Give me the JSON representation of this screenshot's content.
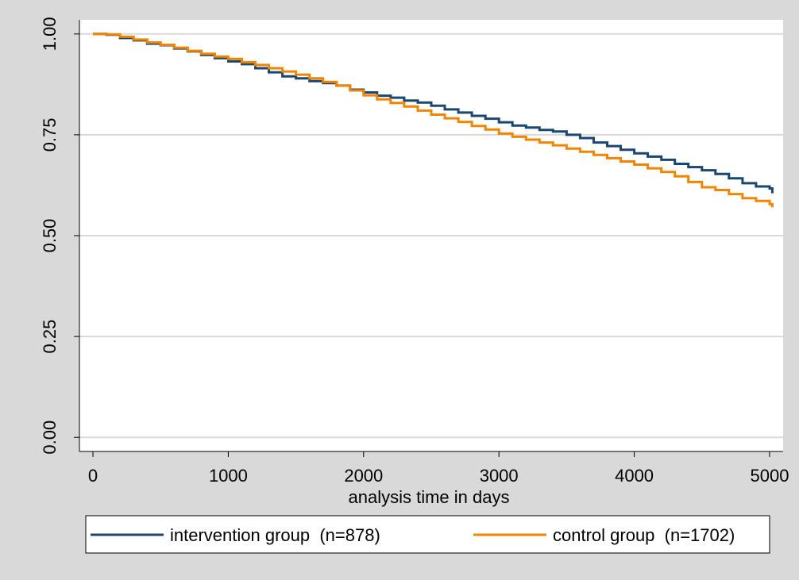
{
  "chart_data": {
    "type": "line",
    "title": "",
    "xlabel": "analysis time in days",
    "ylabel": "",
    "xlim": [
      -100,
      5100
    ],
    "ylim": [
      -0.035,
      1.035
    ],
    "x_ticks": [
      0,
      1000,
      2000,
      3000,
      4000,
      5000
    ],
    "x_tick_labels": [
      "0",
      "1000",
      "2000",
      "3000",
      "4000",
      "5000"
    ],
    "y_ticks": [
      0,
      0.25,
      0.5,
      0.75,
      1
    ],
    "y_tick_labels": [
      "0.00",
      "0.25",
      "0.50",
      "0.75",
      "1.00"
    ],
    "grid": "horizontal",
    "legend_position": "bottom",
    "series": [
      {
        "name": "intervention group  (n=878)",
        "color": "#1a476f",
        "x": [
          0,
          100,
          200,
          300,
          400,
          500,
          600,
          700,
          800,
          900,
          1000,
          1100,
          1200,
          1300,
          1400,
          1500,
          1600,
          1700,
          1800,
          1900,
          2000,
          2100,
          2200,
          2300,
          2400,
          2500,
          2600,
          2700,
          2800,
          2900,
          3000,
          3100,
          3200,
          3300,
          3400,
          3500,
          3600,
          3700,
          3800,
          3900,
          4000,
          4100,
          4200,
          4300,
          4400,
          4500,
          4600,
          4700,
          4800,
          4900,
          5000,
          5020
        ],
        "y": [
          1.0,
          0.998,
          0.99,
          0.984,
          0.976,
          0.972,
          0.964,
          0.957,
          0.948,
          0.94,
          0.932,
          0.925,
          0.915,
          0.905,
          0.895,
          0.89,
          0.883,
          0.878,
          0.872,
          0.862,
          0.855,
          0.847,
          0.842,
          0.835,
          0.83,
          0.822,
          0.813,
          0.805,
          0.797,
          0.79,
          0.781,
          0.773,
          0.768,
          0.762,
          0.758,
          0.75,
          0.742,
          0.731,
          0.722,
          0.713,
          0.704,
          0.696,
          0.688,
          0.678,
          0.67,
          0.662,
          0.653,
          0.642,
          0.63,
          0.622,
          0.617,
          0.605
        ]
      },
      {
        "name": "control group  (n=1702)",
        "color": "#f28500",
        "x": [
          0,
          100,
          200,
          300,
          400,
          500,
          600,
          700,
          800,
          900,
          1000,
          1100,
          1200,
          1300,
          1400,
          1500,
          1600,
          1700,
          1800,
          1900,
          2000,
          2100,
          2200,
          2300,
          2400,
          2500,
          2600,
          2700,
          2800,
          2900,
          3000,
          3100,
          3200,
          3300,
          3400,
          3500,
          3600,
          3700,
          3800,
          3900,
          4000,
          4100,
          4200,
          4300,
          4400,
          4500,
          4600,
          4700,
          4800,
          4900,
          5000,
          5020
        ],
        "y": [
          1.0,
          0.999,
          0.993,
          0.986,
          0.979,
          0.973,
          0.966,
          0.958,
          0.951,
          0.944,
          0.938,
          0.93,
          0.923,
          0.915,
          0.907,
          0.899,
          0.89,
          0.881,
          0.872,
          0.86,
          0.848,
          0.838,
          0.829,
          0.82,
          0.81,
          0.8,
          0.791,
          0.782,
          0.772,
          0.763,
          0.753,
          0.745,
          0.738,
          0.731,
          0.724,
          0.716,
          0.708,
          0.7,
          0.692,
          0.684,
          0.676,
          0.667,
          0.658,
          0.647,
          0.633,
          0.62,
          0.613,
          0.603,
          0.593,
          0.586,
          0.578,
          0.57
        ]
      }
    ]
  }
}
